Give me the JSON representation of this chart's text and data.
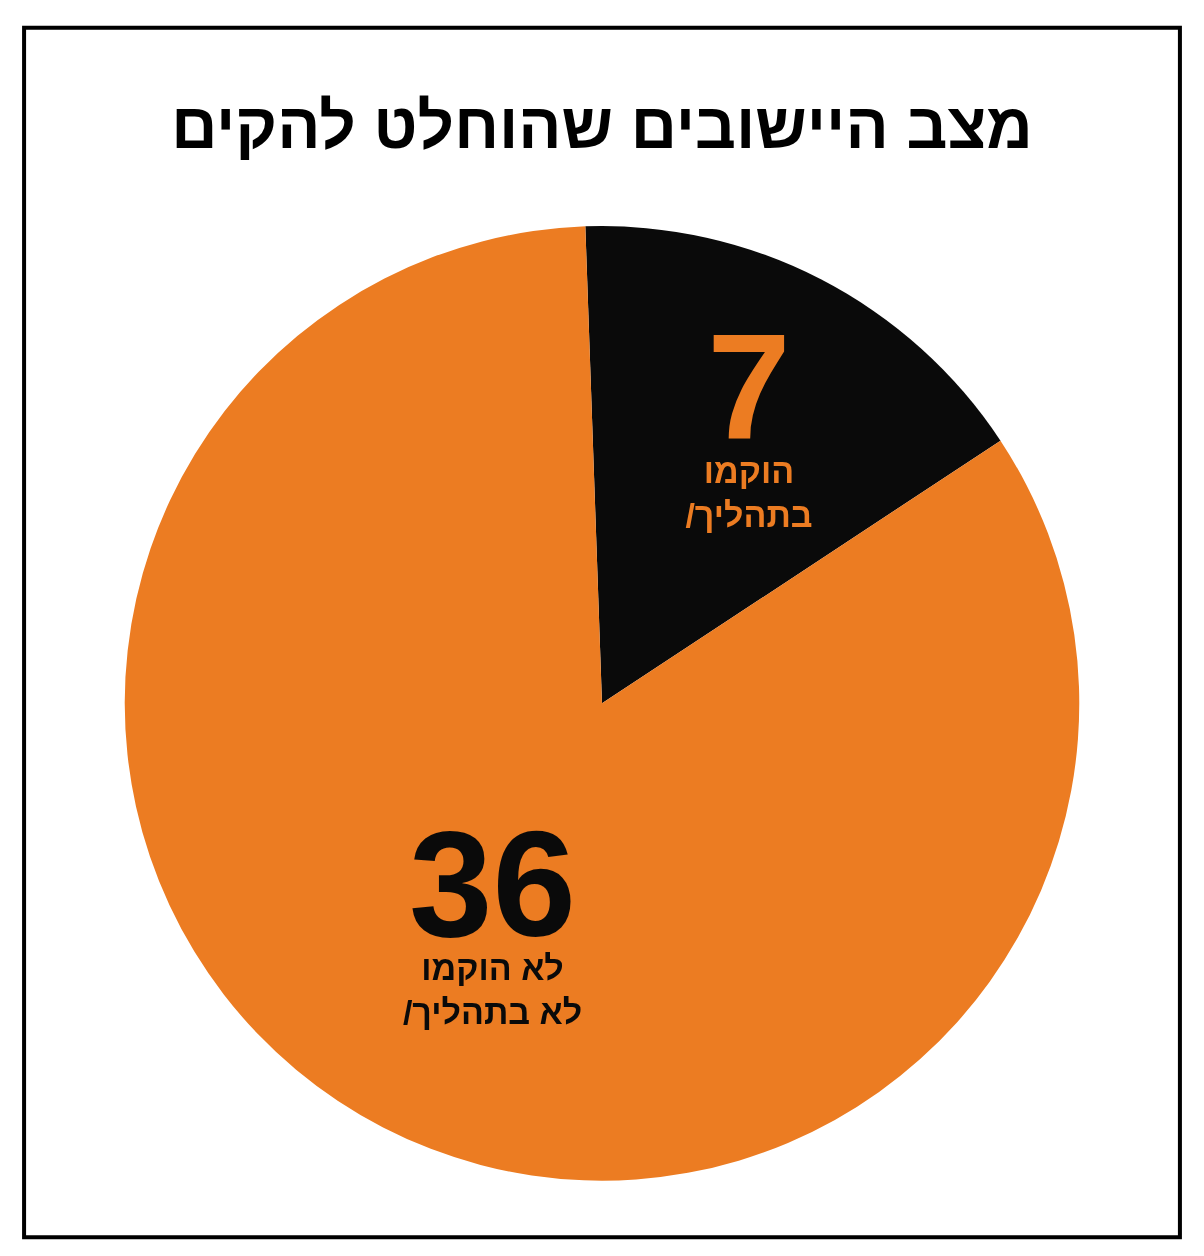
{
  "chart_data": {
    "type": "pie",
    "title": "מצב היישובים שהוחלט להקים",
    "categories": [
      "הוקמו\n/בתהליך",
      "לא הוקמו\n/לא בתהליך"
    ],
    "values": [
      7,
      36
    ],
    "colors": [
      "#0a0a0a",
      "#ec7c22"
    ],
    "data_labels": true,
    "legend": false
  }
}
